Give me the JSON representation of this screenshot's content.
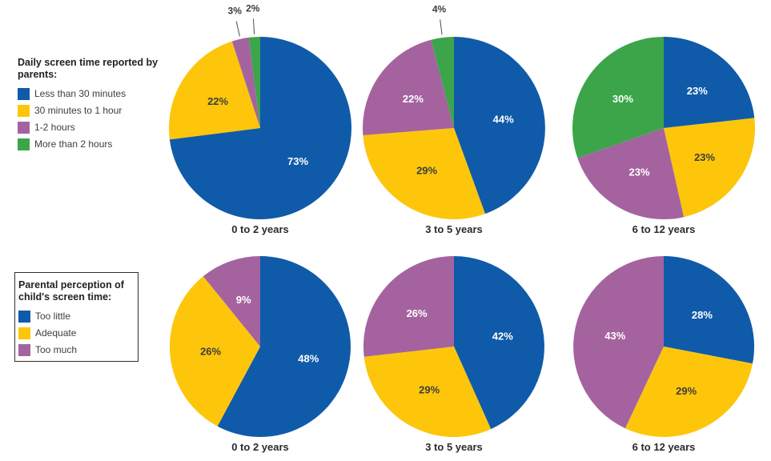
{
  "figure": {
    "background": "#ffffff",
    "ink_color": "#3d3d3d",
    "caption_color": "#2b2b2b",
    "leader_line_color": "#4d4d4d"
  },
  "legends": [
    {
      "title": "Daily screen time reported by parents:",
      "boxed": false,
      "items": [
        {
          "label": "Less than 30 minutes",
          "color": "#0f5ba9"
        },
        {
          "label": "30 minutes to 1 hour",
          "color": "#fdc60b"
        },
        {
          "label": "1-2 hours",
          "color": "#a4639f"
        },
        {
          "label": "More than 2 hours",
          "color": "#3ca54a"
        }
      ]
    },
    {
      "title": "Parental perception of child's screen time:",
      "boxed": true,
      "items": [
        {
          "label": "Too little",
          "color": "#0f5ba9"
        },
        {
          "label": "Adequate",
          "color": "#fdc60b"
        },
        {
          "label": "Too much",
          "color": "#a4639f"
        }
      ]
    }
  ],
  "chart_data": [
    {
      "type": "pie",
      "title": "Daily screen time reported by parents:",
      "categories": [
        "Less than 30 minutes",
        "30 minutes to 1 hour",
        "1-2 hours",
        "More than 2 hours"
      ],
      "colors": [
        "#0f5ba9",
        "#fdc60b",
        "#a4639f",
        "#3ca54a"
      ],
      "label_colors": [
        "#ffffff",
        "#3d3d3d",
        "#ffffff",
        "#ffffff"
      ],
      "layout": "slices start at 12 o'clock and run clockwise in category order; small slices labeled outside with leader lines",
      "pies": [
        {
          "caption": "0 to 2 years",
          "values": [
            73,
            22,
            3,
            2
          ],
          "labels": [
            "73%",
            "22%",
            "3%",
            "2%"
          ]
        },
        {
          "caption": "3 to 5 years",
          "values": [
            44,
            29,
            22,
            4
          ],
          "labels": [
            "44%",
            "29%",
            "22%",
            "4%"
          ]
        },
        {
          "caption": "6 to 12 years",
          "values": [
            23,
            23,
            23,
            30
          ],
          "labels": [
            "23%",
            "23%",
            "23%",
            "30%"
          ]
        }
      ]
    },
    {
      "type": "pie",
      "title": "Parental perception of child's screen time:",
      "categories": [
        "Too little",
        "Adequate",
        "Too much"
      ],
      "colors": [
        "#0f5ba9",
        "#fdc60b",
        "#a4639f"
      ],
      "label_colors": [
        "#ffffff",
        "#3d3d3d",
        "#ffffff"
      ],
      "layout": "slices start at 12 o'clock and run clockwise in category order; slice angles normalized to the sum of shown values",
      "pies": [
        {
          "caption": "0 to 2 years",
          "values": [
            48,
            26,
            9
          ],
          "labels": [
            "48%",
            "26%",
            "9%"
          ]
        },
        {
          "caption": "3 to 5 years",
          "values": [
            42,
            29,
            26
          ],
          "labels": [
            "42%",
            "29%",
            "26%"
          ]
        },
        {
          "caption": "6 to 12 years",
          "values": [
            28,
            29,
            43
          ],
          "labels": [
            "28%",
            "29%",
            "43%"
          ]
        }
      ]
    }
  ]
}
